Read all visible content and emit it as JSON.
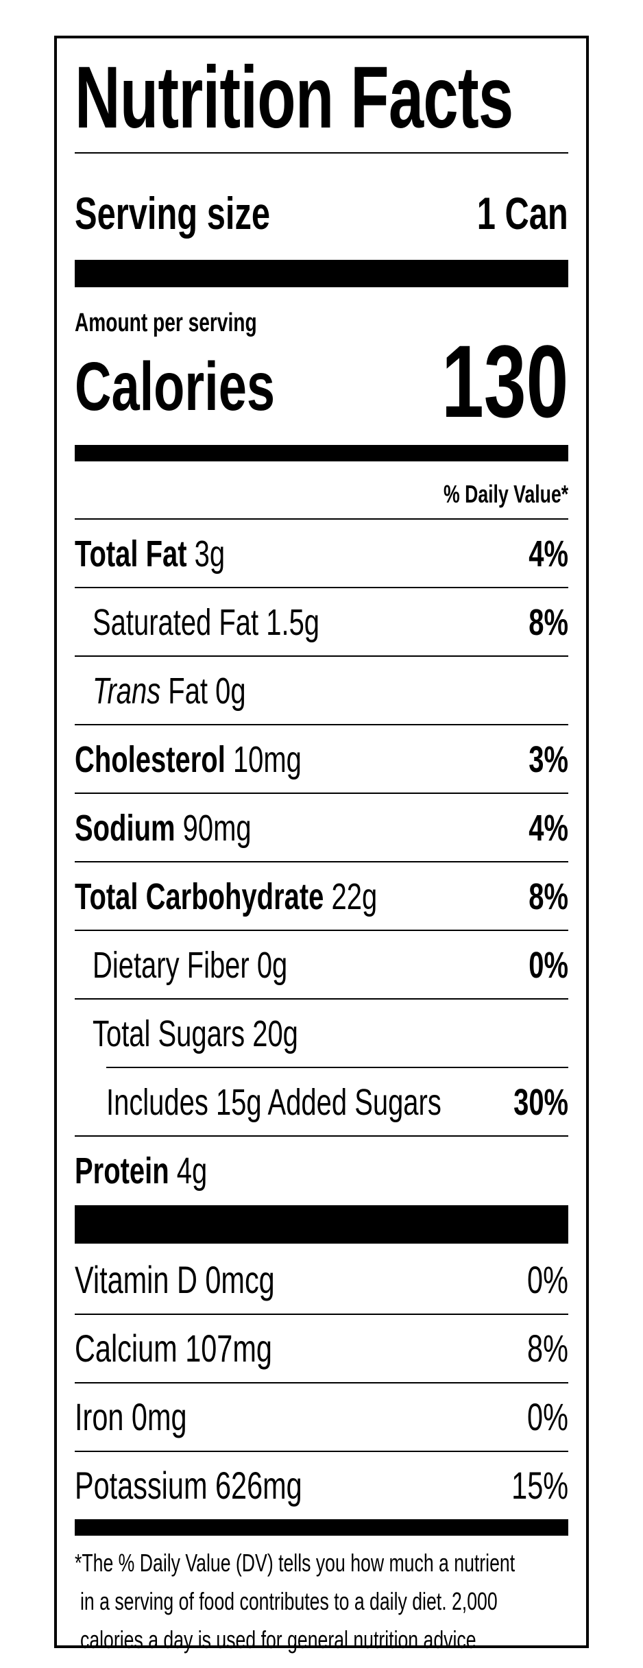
{
  "title": "Nutrition Facts",
  "serving": {
    "label": "Serving size",
    "value": "1 Can"
  },
  "amount_per_serving": "Amount per serving",
  "calories": {
    "label": "Calories",
    "value": "130"
  },
  "dv_header": "% Daily Value*",
  "nutrients": [
    {
      "name": "Total Fat",
      "amount": "3g",
      "dv": "4%"
    },
    {
      "name": "Saturated Fat",
      "amount": "1.5g",
      "dv": "8%"
    },
    {
      "name_italic": "Trans",
      "name": "Fat",
      "amount": "0g",
      "dv": ""
    },
    {
      "name": "Cholesterol",
      "amount": "10mg",
      "dv": "3%"
    },
    {
      "name": "Sodium",
      "amount": "90mg",
      "dv": "4%"
    },
    {
      "name": "Total Carbohydrate",
      "amount": "22g",
      "dv": "8%"
    },
    {
      "name": "Dietary Fiber",
      "amount": "0g",
      "dv": "0%"
    },
    {
      "name": "Total Sugars",
      "amount": "20g",
      "dv": ""
    },
    {
      "prefix": "Includes",
      "amount": "15g",
      "name": "Added Sugars",
      "dv": "30%"
    },
    {
      "name": "Protein",
      "amount": "4g",
      "dv": ""
    }
  ],
  "vitamins": [
    {
      "name": "Vitamin D",
      "amount": "0mcg",
      "dv": "0%"
    },
    {
      "name": "Calcium",
      "amount": "107mg",
      "dv": "8%"
    },
    {
      "name": "Iron",
      "amount": "0mg",
      "dv": "0%"
    },
    {
      "name": "Potassium",
      "amount": "626mg",
      "dv": "15%"
    }
  ],
  "footnote": [
    "*The % Daily Value (DV) tells you how much a nutrient",
    "in a serving of food contributes to a daily diet. 2,000",
    "calories a day is used for general nutrition advice."
  ]
}
